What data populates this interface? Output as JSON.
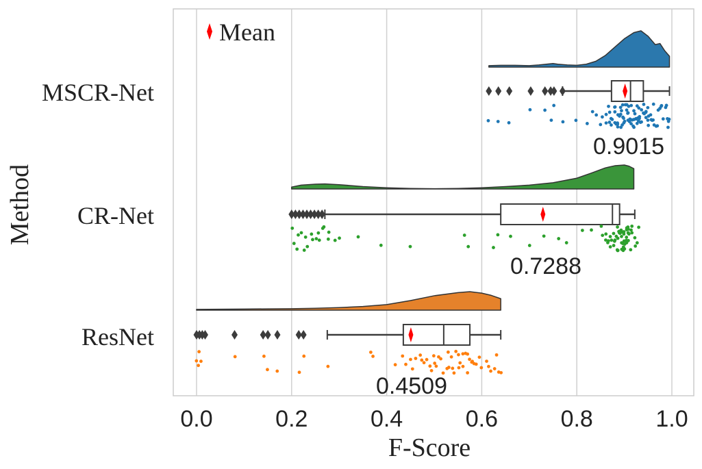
{
  "chart_data": {
    "type": "raincloud",
    "orientation": "horizontal",
    "xlabel": "F-Score",
    "ylabel": "Method",
    "xlim": [
      -0.05,
      1.03
    ],
    "xticks": [
      0.0,
      0.2,
      0.4,
      0.6,
      0.8,
      1.0
    ],
    "xtick_labels": [
      "0.0",
      "0.2",
      "0.4",
      "0.6",
      "0.8",
      "1.0"
    ],
    "grid": "vertical",
    "legend": {
      "position": "top-left",
      "label": "Mean",
      "marker": "red-diamond"
    },
    "colors": {
      "MSCR-Net": "#2b78ad",
      "CR-Net": "#2ca02c",
      "ResNet": "#ff7f0e",
      "mean_marker": "#ff0000",
      "box_line": "#3c3c3c",
      "grid": "#d0d0d0"
    },
    "series": [
      {
        "name": "MSCR-Net",
        "color": "#1f77b4",
        "annotation": "0.9015",
        "mean": 0.9015,
        "box": {
          "whisker_low": 0.77,
          "q1": 0.873,
          "median": 0.913,
          "q3": 0.94,
          "whisker_high": 0.995
        },
        "outliers": [
          0.615,
          0.635,
          0.658,
          0.703,
          0.733,
          0.745,
          0.752,
          0.77
        ],
        "density": {
          "x": [
            0.615,
            0.64,
            0.67,
            0.7,
            0.72,
            0.75,
            0.76,
            0.78,
            0.8,
            0.82,
            0.84,
            0.86,
            0.88,
            0.9,
            0.92,
            0.935,
            0.95,
            0.965,
            0.975,
            0.985,
            0.995
          ],
          "y": [
            0.04,
            0.05,
            0.05,
            0.04,
            0.06,
            0.1,
            0.08,
            0.06,
            0.05,
            0.08,
            0.16,
            0.32,
            0.55,
            0.78,
            0.95,
            1.0,
            0.85,
            0.62,
            0.65,
            0.45,
            0.3
          ]
        },
        "points": [
          0.615,
          0.635,
          0.658,
          0.703,
          0.733,
          0.745,
          0.752,
          0.77,
          0.8,
          0.82,
          0.835,
          0.84,
          0.85,
          0.855,
          0.86,
          0.862,
          0.866,
          0.87,
          0.872,
          0.875,
          0.878,
          0.88,
          0.882,
          0.884,
          0.886,
          0.888,
          0.89,
          0.892,
          0.894,
          0.896,
          0.898,
          0.9,
          0.902,
          0.904,
          0.906,
          0.908,
          0.91,
          0.912,
          0.914,
          0.916,
          0.918,
          0.92,
          0.922,
          0.924,
          0.926,
          0.928,
          0.93,
          0.932,
          0.934,
          0.936,
          0.938,
          0.94,
          0.943,
          0.946,
          0.949,
          0.952,
          0.955,
          0.958,
          0.961,
          0.964,
          0.967,
          0.97,
          0.973,
          0.976,
          0.979,
          0.982,
          0.985,
          0.988,
          0.991,
          0.994,
          0.886,
          0.896,
          0.906,
          0.916,
          0.926,
          0.936,
          0.946,
          0.956,
          0.901,
          0.911,
          0.921,
          0.931,
          0.871,
          0.881,
          0.891,
          0.941,
          0.951,
          0.961,
          0.971,
          0.909,
          0.919,
          0.929,
          0.939,
          0.949,
          0.899,
          0.889,
          0.879,
          0.869,
          0.995,
          0.99
        ]
      },
      {
        "name": "CR-Net",
        "color": "#2ca02c",
        "annotation": "0.7288",
        "mean": 0.7288,
        "box": {
          "whisker_low": 0.27,
          "q1": 0.64,
          "median": 0.875,
          "q3": 0.89,
          "whisker_high": 0.922
        },
        "outliers": [
          0.2,
          0.208,
          0.216,
          0.224,
          0.232,
          0.24,
          0.248,
          0.256,
          0.264
        ],
        "density": {
          "x": [
            0.2,
            0.22,
            0.25,
            0.27,
            0.3,
            0.35,
            0.4,
            0.45,
            0.5,
            0.55,
            0.6,
            0.65,
            0.7,
            0.75,
            0.8,
            0.83,
            0.86,
            0.88,
            0.9,
            0.91,
            0.92
          ],
          "y": [
            0.08,
            0.16,
            0.2,
            0.21,
            0.18,
            0.1,
            0.05,
            0.02,
            0.01,
            0.02,
            0.05,
            0.1,
            0.16,
            0.26,
            0.45,
            0.66,
            0.88,
            0.97,
            1.0,
            0.95,
            0.85
          ]
        },
        "points": [
          0.2,
          0.205,
          0.21,
          0.215,
          0.22,
          0.225,
          0.23,
          0.235,
          0.24,
          0.245,
          0.25,
          0.255,
          0.26,
          0.265,
          0.27,
          0.275,
          0.28,
          0.29,
          0.3,
          0.34,
          0.39,
          0.45,
          0.565,
          0.57,
          0.625,
          0.635,
          0.66,
          0.7,
          0.73,
          0.76,
          0.78,
          0.81,
          0.83,
          0.85,
          0.855,
          0.86,
          0.862,
          0.865,
          0.868,
          0.87,
          0.872,
          0.875,
          0.877,
          0.88,
          0.882,
          0.884,
          0.886,
          0.888,
          0.89,
          0.891,
          0.892,
          0.893,
          0.894,
          0.895,
          0.896,
          0.897,
          0.898,
          0.899,
          0.9,
          0.901,
          0.902,
          0.903,
          0.904,
          0.905,
          0.906,
          0.907,
          0.908,
          0.909,
          0.91,
          0.912,
          0.914,
          0.916,
          0.918,
          0.92,
          0.922,
          0.925,
          0.93,
          0.885,
          0.887,
          0.889,
          0.893,
          0.897,
          0.901,
          0.905,
          0.909,
          0.878,
          0.883,
          0.888,
          0.898,
          0.908
        ]
      },
      {
        "name": "ResNet",
        "color": "#ff7f0e",
        "annotation": "0.4509",
        "mean": 0.4509,
        "box": {
          "whisker_low": 0.275,
          "q1": 0.435,
          "median": 0.52,
          "q3": 0.575,
          "whisker_high": 0.64
        },
        "outliers": [
          0.0,
          0.006,
          0.012,
          0.018,
          0.08,
          0.14,
          0.15,
          0.17,
          0.215,
          0.225
        ],
        "density": {
          "x": [
            0.0,
            0.05,
            0.1,
            0.15,
            0.2,
            0.25,
            0.3,
            0.35,
            0.4,
            0.45,
            0.5,
            0.55,
            0.575,
            0.6,
            0.62,
            0.64
          ],
          "y": [
            0.04,
            0.05,
            0.06,
            0.07,
            0.08,
            0.1,
            0.14,
            0.2,
            0.3,
            0.52,
            0.78,
            0.95,
            1.0,
            0.92,
            0.8,
            0.62
          ]
        },
        "points": [
          0.0,
          0.003,
          0.006,
          0.01,
          0.08,
          0.14,
          0.15,
          0.17,
          0.215,
          0.225,
          0.275,
          0.365,
          0.37,
          0.42,
          0.435,
          0.44,
          0.45,
          0.455,
          0.46,
          0.47,
          0.475,
          0.48,
          0.485,
          0.49,
          0.495,
          0.5,
          0.505,
          0.51,
          0.515,
          0.52,
          0.525,
          0.53,
          0.535,
          0.54,
          0.545,
          0.55,
          0.555,
          0.56,
          0.565,
          0.57,
          0.575,
          0.58,
          0.585,
          0.59,
          0.595,
          0.6,
          0.61,
          0.615,
          0.62,
          0.625,
          0.63,
          0.635,
          0.64,
          0.53,
          0.55,
          0.57,
          0.58,
          0.56,
          0.54,
          0.5
        ]
      }
    ]
  }
}
